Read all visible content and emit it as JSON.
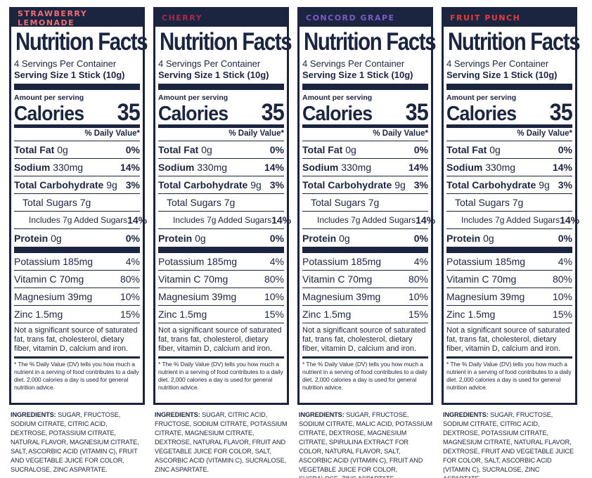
{
  "common": {
    "title": "Nutrition Facts",
    "servings_per_container": "4 Servings Per Container",
    "serving_size": "Serving Size  1 Stick (10g)",
    "amount_per_serving": "Amount per serving",
    "calories_label": "Calories",
    "calories_value": "35",
    "dv_header": "% Daily Value*",
    "nutrients": {
      "total_fat": {
        "label": "Total Fat",
        "amount": "0g",
        "dv": "0%"
      },
      "sodium": {
        "label": "Sodium",
        "amount": "330mg",
        "dv": "14%"
      },
      "total_carb": {
        "label": "Total Carbohydrate",
        "amount": "9g",
        "dv": "3%"
      },
      "total_sugars": {
        "text": "Total Sugars 7g"
      },
      "added_sugars": {
        "text": "Includes 7g Added Sugars",
        "dv": "14%"
      },
      "protein": {
        "label": "Protein",
        "amount": "0g",
        "dv": "0%"
      }
    },
    "vitamins": [
      {
        "label": "Potassium 185mg",
        "dv": "4%"
      },
      {
        "label": "Vitamin C 70mg",
        "dv": "80%"
      },
      {
        "label": "Magnesium 39mg",
        "dv": "10%"
      },
      {
        "label": "Zinc 1.5mg",
        "dv": "15%"
      }
    ],
    "not_significant": "Not a significant source of saturated fat, trans fat, cholesterol, dietary fiber, vitamin D, calcium and iron.",
    "dv_footnote": "* The % Daily Value (DV) tells you how much a nutrient in a serving of food contributes to a daily diet. 2,000 calories a day is used for general nutrition advice.",
    "ingredients_label": "INGREDIENTS:"
  },
  "panels": [
    {
      "flavor": "STRAWBERRY LEMONADE",
      "flavor_color": "#f26a73",
      "ingredients": "SUGAR, FRUCTOSE, SODIUM CITRATE, CITRIC ACID, DEXTROSE, POTASSIUM CITRATE, NATURAL FLAVOR, MAGNESIUM CITRATE, SALT, ASCORBIC ACID (VITAMIN C), FRUIT AND VEGETABLE JUICE FOR COLOR, SUCRALOSE, ZINC ASPARTATE."
    },
    {
      "flavor": "CHERRY",
      "flavor_color": "#a8274f",
      "ingredients": "SUGAR, CITRIC ACID, FRUCTOSE, SODIUM CITRATE, POTASSIUM CITRATE, MAGNESIUM CITRATE, DEXTROSE, NATURAL FLAVOR, FRUIT AND VEGETABLE JUICE FOR COLOR, SALT, ASCORBIC ACID (VITAMIN C), SUCRALOSE, ZINC ASPARTATE."
    },
    {
      "flavor": "CONCORD GRAPE",
      "flavor_color": "#7a5ac8",
      "ingredients": "SUGAR, FRUCTOSE, SODIUM CITRATE, MALIC ACID, POTASSIUM CITRATE, DEXTROSE, MAGNESIUM CITRATE, SPIRULINA EXTRACT FOR COLOR, NATURAL FLAVOR, SALT, ASCORBIC ACID (VITAMIN C), FRUIT AND VEGETABLE JUICE FOR COLOR, SUCRALOSE, ZINC ASPARTATE."
    },
    {
      "flavor": "FRUIT PUNCH",
      "flavor_color": "#e83a3a",
      "ingredients": "SUGAR, FRUCTOSE, SODIUM CITRATE, CITRIC ACID, DEXTROSE, POTASSIUM CITRATE, MAGNESIUM CITRATE, NATURAL FLAVOR, DEXTROSE, FRUIT AND VEGETABLE JUICE FOR COLOR, SALT, ASCORBIC ACID (VITAMIN C), SUCRALOSE, ZINC ASPARTATE."
    }
  ]
}
